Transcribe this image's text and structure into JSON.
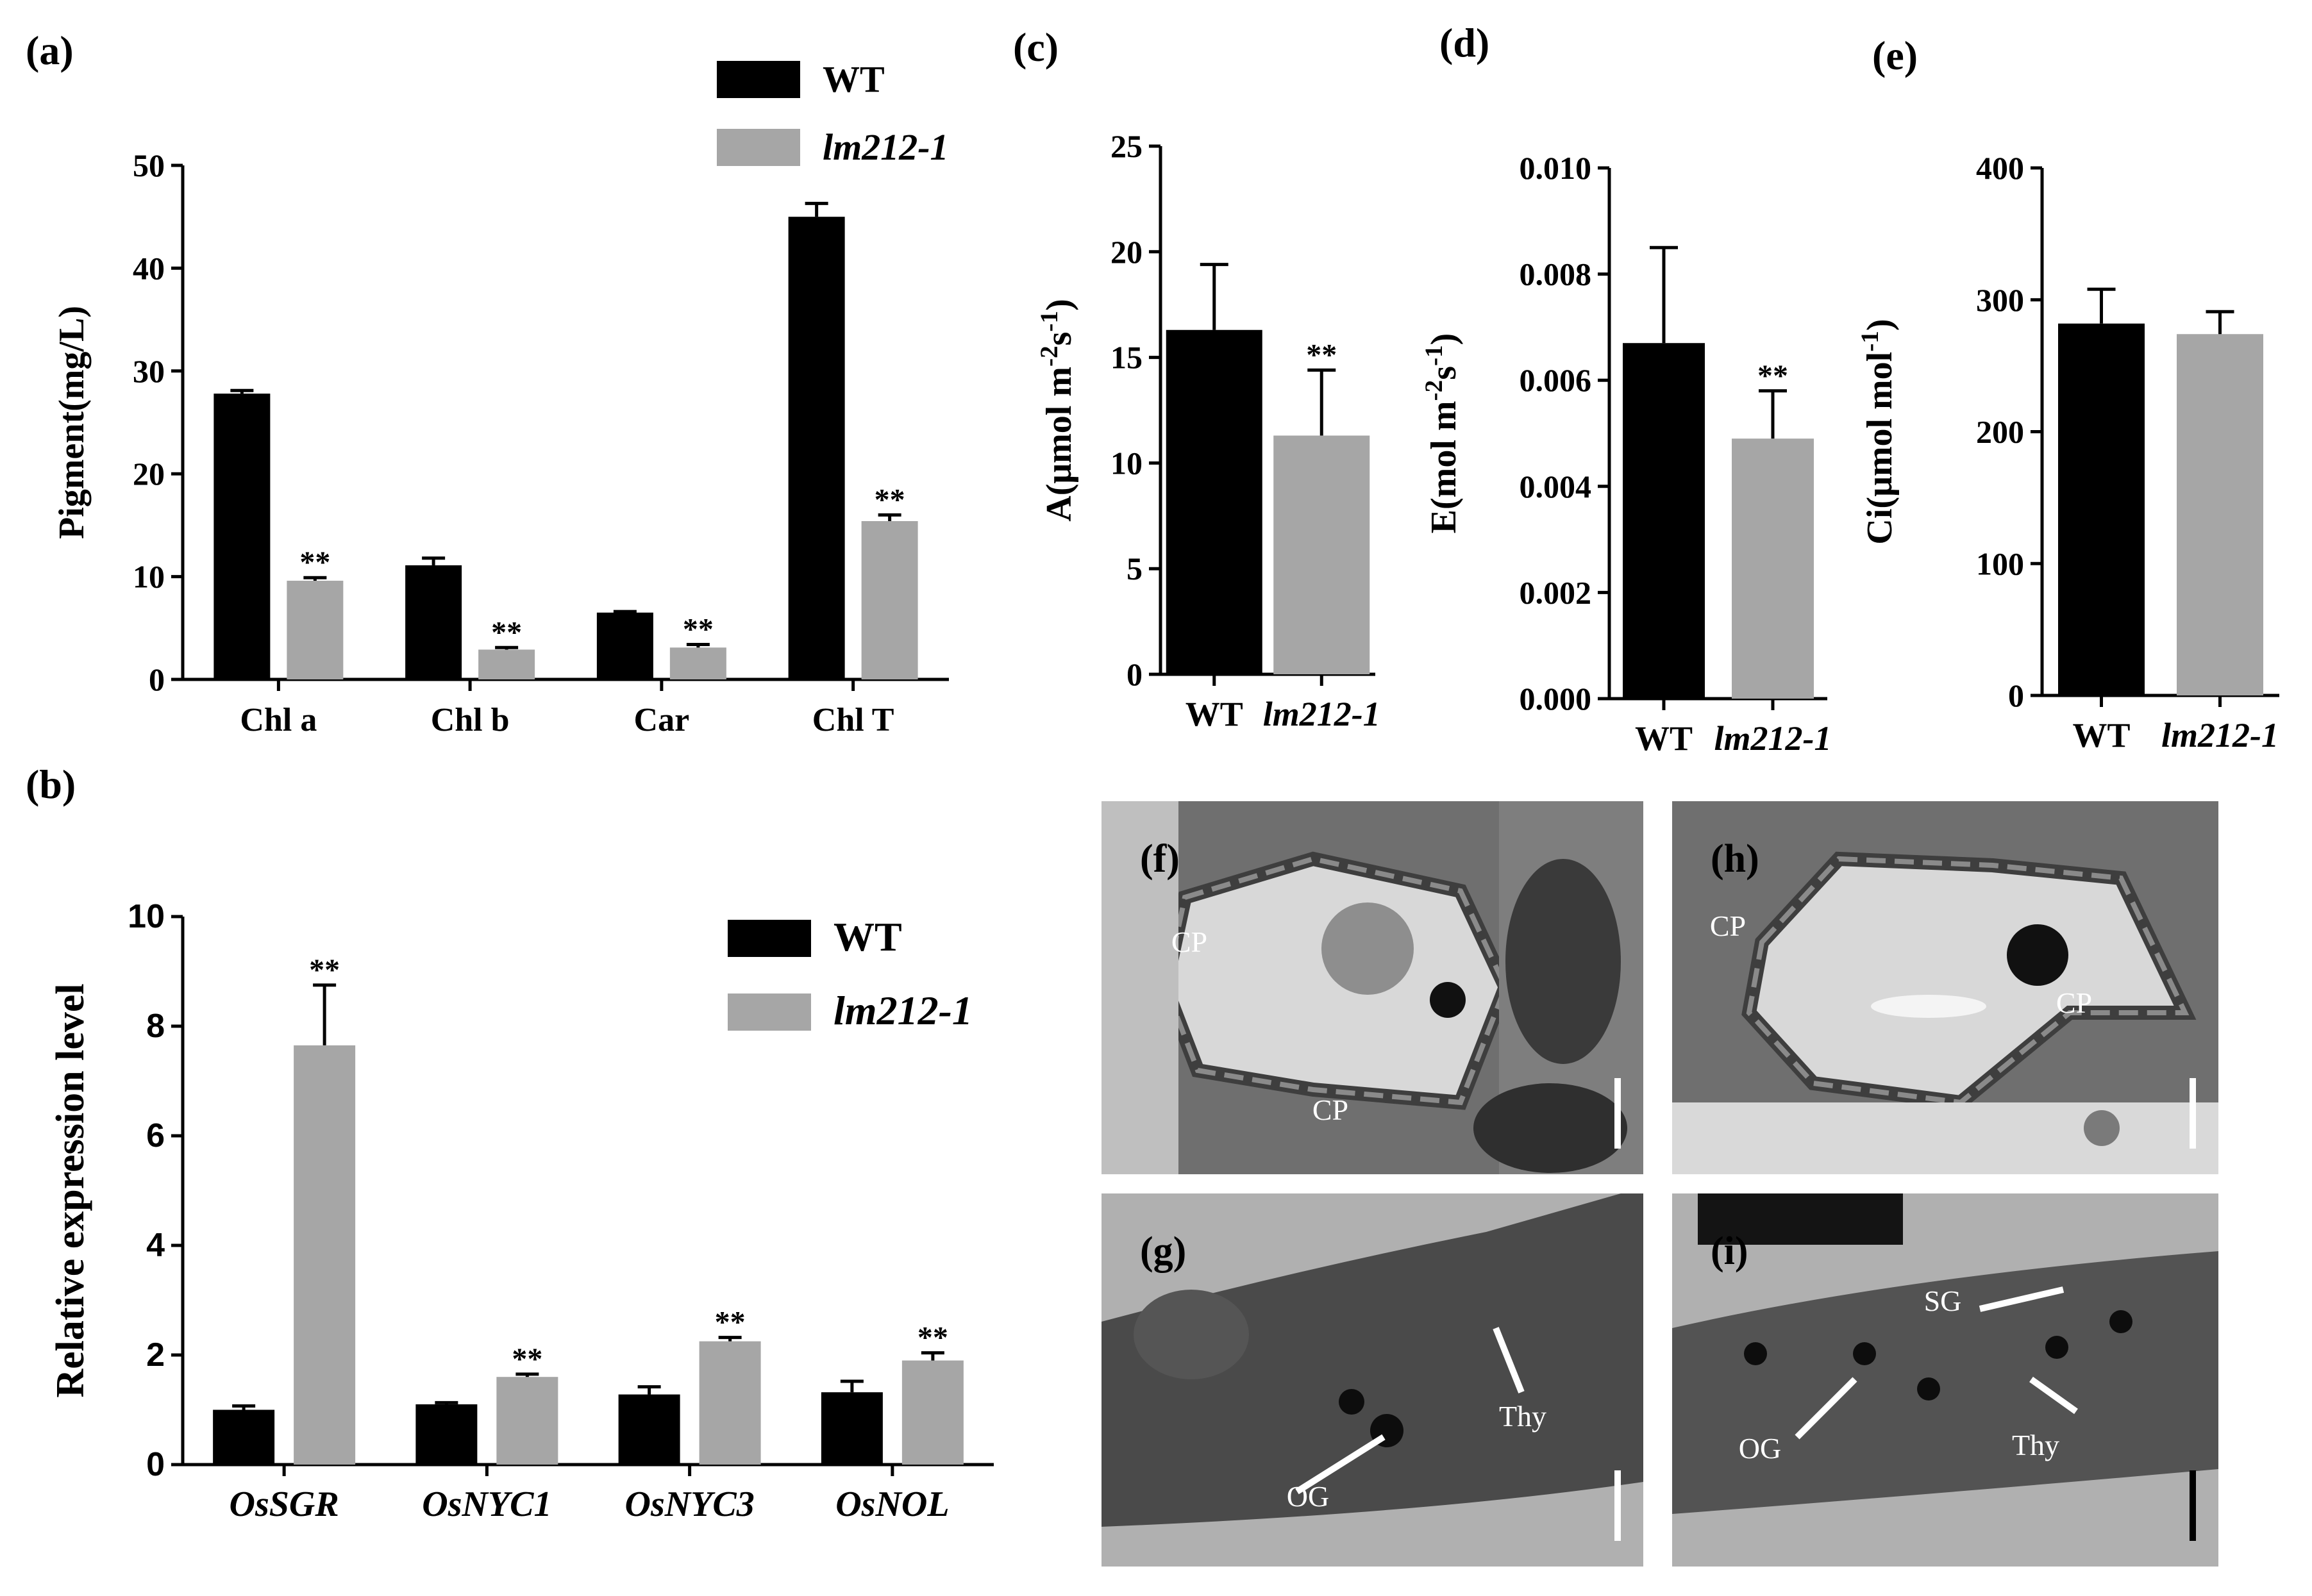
{
  "colors": {
    "wt": "#000000",
    "mutant": "#a6a6a6",
    "axis": "#000000",
    "em_bg": "#9a9a9a",
    "em_dark": "#444444",
    "em_light": "#dedede"
  },
  "chart_data": [
    {
      "panel": "(a)",
      "type": "bar",
      "categories": [
        "Chl a",
        "Chl b",
        "Car",
        "Chl T"
      ],
      "series": [
        {
          "name": "WT",
          "values": [
            27.8,
            11.1,
            6.5,
            45.0
          ],
          "errors": [
            0.3,
            0.7,
            0.1,
            1.3
          ]
        },
        {
          "name": "lm212-1",
          "values": [
            9.6,
            2.9,
            3.1,
            15.4
          ],
          "errors": [
            0.3,
            0.2,
            0.3,
            0.6
          ]
        }
      ],
      "significance": [
        "**",
        "**",
        "**",
        "**"
      ],
      "ylabel": "Pigment(mg/L)",
      "ylim": [
        0,
        50
      ],
      "yticks": [
        "0",
        "10",
        "20",
        "30",
        "40",
        "50"
      ],
      "legend": "top-right"
    },
    {
      "panel": "(b)",
      "type": "bar",
      "categories": [
        "OsSGR",
        "OsNYC1",
        "OsNYC3",
        "OsNOL"
      ],
      "series": [
        {
          "name": "WT",
          "values": [
            1.0,
            1.1,
            1.28,
            1.32
          ],
          "errors": [
            0.07,
            0.03,
            0.14,
            0.2
          ]
        },
        {
          "name": "lm212-1",
          "values": [
            7.65,
            1.6,
            2.25,
            1.9
          ],
          "errors": [
            1.1,
            0.05,
            0.07,
            0.14
          ]
        }
      ],
      "significance": [
        "**",
        "**",
        "**",
        "**"
      ],
      "ylabel": "Relative expression level",
      "ylim": [
        0,
        10
      ],
      "yticks": [
        "0",
        "2",
        "4",
        "6",
        "8",
        "10"
      ],
      "legend": "top-right"
    },
    {
      "panel": "(c)",
      "type": "bar",
      "categories": [
        "WT",
        "lm212-1"
      ],
      "values": [
        16.3,
        11.3
      ],
      "errors": [
        3.1,
        3.1
      ],
      "significance": [
        "",
        "**"
      ],
      "ylabel": "A(μmol m-2s-1)",
      "ylim": [
        0,
        25
      ],
      "yticks": [
        "0",
        "5",
        "10",
        "15",
        "20",
        "25"
      ]
    },
    {
      "panel": "(d)",
      "type": "bar",
      "categories": [
        "WT",
        "lm212-1"
      ],
      "values": [
        0.0067,
        0.0049
      ],
      "errors": [
        0.0018,
        0.0009
      ],
      "significance": [
        "",
        "**"
      ],
      "ylabel": "E(mol m-2s-1)",
      "ylim": [
        0,
        0.01
      ],
      "yticks": [
        "0.000",
        "0.002",
        "0.004",
        "0.006",
        "0.008",
        "0.010"
      ]
    },
    {
      "panel": "(e)",
      "type": "bar",
      "categories": [
        "WT",
        "lm212-1"
      ],
      "values": [
        282,
        274
      ],
      "errors": [
        26,
        17
      ],
      "significance": [
        "",
        ""
      ],
      "ylabel": "Ci(μmol mol-1)",
      "ylim": [
        0,
        400
      ],
      "yticks": [
        "0",
        "100",
        "200",
        "300",
        "400"
      ]
    }
  ],
  "micrographs": [
    {
      "panel": "(f)",
      "labels": [
        "CP",
        "CP"
      ]
    },
    {
      "panel": "(h)",
      "labels": [
        "CP",
        "CP"
      ]
    },
    {
      "panel": "(g)",
      "labels": [
        "OG",
        "Thy"
      ]
    },
    {
      "panel": "(i)",
      "labels": [
        "SG",
        "OG",
        "Thy"
      ]
    }
  ]
}
